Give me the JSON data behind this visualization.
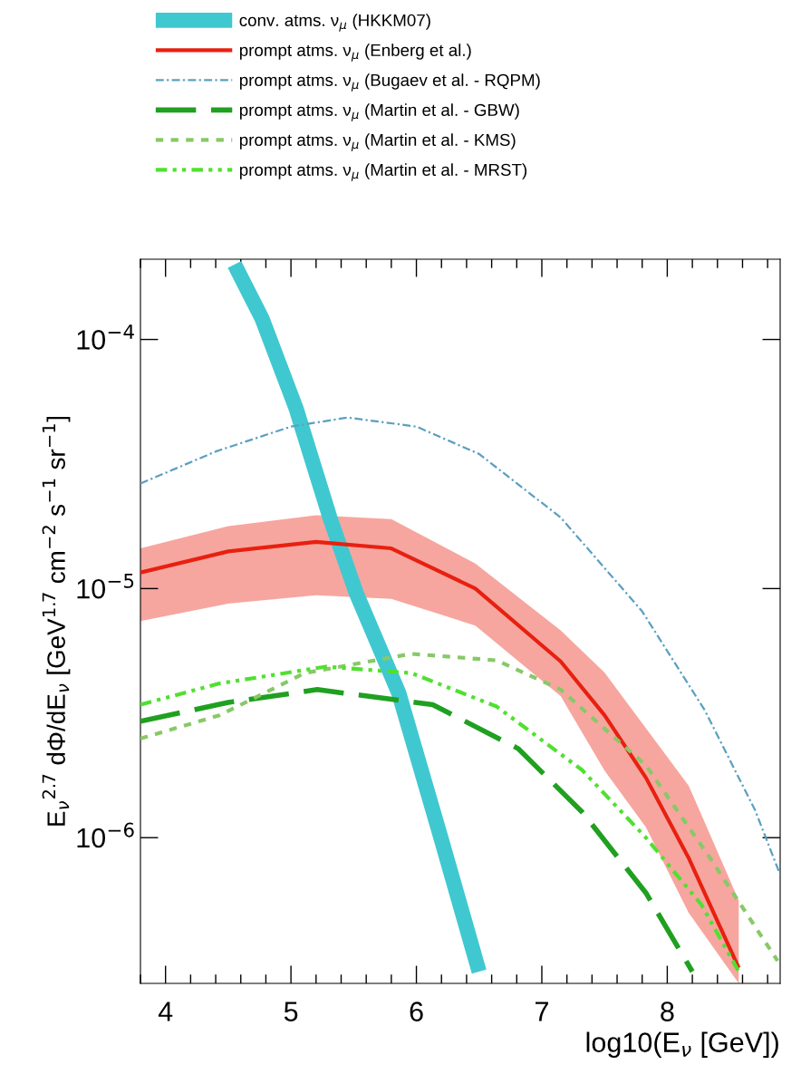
{
  "chart_data": {
    "type": "line",
    "xlabel": "log10(E$_{ν}$ [GeV])",
    "ylabel": "E$_{ν}$$^{2.7}$ dΦ/dE$_{ν}$ [GeV$^{1.7}$ cm$^{−2}$ s$^{−1}$ sr$^{−1}$]",
    "log": "y",
    "grid": false,
    "legend": "top",
    "xlim": [
      3.8,
      8.9
    ],
    "xticks": [
      {
        "value": 3.8,
        "label": null
      },
      4,
      {
        "value": 4.2,
        "label": null
      },
      {
        "value": 4.4,
        "label": null
      },
      {
        "value": 4.6,
        "label": null
      },
      {
        "value": 4.8,
        "label": null
      },
      5,
      {
        "value": 5.2,
        "label": null
      },
      {
        "value": 5.4,
        "label": null
      },
      {
        "value": 5.6,
        "label": null
      },
      {
        "value": 5.8,
        "label": null
      },
      6,
      {
        "value": 6.2,
        "label": null
      },
      {
        "value": 6.4,
        "label": null
      },
      {
        "value": 6.6,
        "label": null
      },
      {
        "value": 6.8,
        "label": null
      },
      7,
      {
        "value": 7.2,
        "label": null
      },
      {
        "value": 7.4,
        "label": null
      },
      {
        "value": 7.6,
        "label": null
      },
      {
        "value": 7.8,
        "label": null
      },
      8,
      {
        "value": 8.2,
        "label": null
      },
      {
        "value": 8.4,
        "label": null
      },
      {
        "value": 8.6,
        "label": null
      },
      {
        "value": 8.8,
        "label": null
      }
    ],
    "ylim": [
      2.6e-07,
      0.00021
    ],
    "yticks": [
      {
        "value": 1e-06,
        "label": "10$^{−6}$"
      },
      {
        "value": 1e-05,
        "label": "10$^{−5}$"
      },
      {
        "value": 0.0001,
        "label": "10$^{−4}$"
      }
    ],
    "series": [
      {
        "name": "conv. atms. ν$_{μ}$ (HKKM07)",
        "color": "#40c8d0",
        "line_style": "solid",
        "x": [
          4.55,
          4.77,
          5.04,
          5.31,
          5.52,
          5.86,
          6.2,
          6.5
        ],
        "values": [
          0.0002,
          0.000121,
          5.3e-05,
          1.93e-05,
          9.6e-06,
          3.8e-06,
          9.8e-07,
          2.9e-07
        ]
      },
      {
        "name": "prompt atms. ν$_{μ}$ (Enberg et al.)",
        "color": "#e82010",
        "line_style": "solid",
        "x": [
          3.8,
          4.5,
          5.2,
          5.8,
          6.47,
          7.15,
          7.5,
          7.83,
          8.17,
          8.57
        ],
        "values": [
          1.16e-05,
          1.41e-05,
          1.54e-05,
          1.45e-05,
          1e-05,
          5.1e-06,
          3.1e-06,
          1.74e-06,
          8.3e-07,
          3e-07
        ],
        "upper": [
          1.45e-05,
          1.78e-05,
          1.97e-05,
          1.9e-05,
          1.26e-05,
          6.8e-06,
          4.6e-06,
          2.75e-06,
          1.62e-06,
          5.6e-07
        ],
        "lower": [
          7.4e-06,
          8.7e-06,
          9.4e-06,
          9.1e-06,
          7.1e-06,
          3.7e-06,
          1.86e-06,
          1.1e-06,
          5e-07,
          2.6e-07
        ]
      },
      {
        "name": "prompt atms. ν$_{μ}$ (Bugaev et al. - RQPM)",
        "color": "#5aa0c0",
        "line_style": "dashdot",
        "x": [
          3.8,
          4.4,
          5.0,
          5.45,
          6.0,
          6.5,
          7.15,
          7.8,
          8.3,
          8.7,
          8.9
        ],
        "values": [
          2.64e-05,
          3.55e-05,
          4.47e-05,
          4.86e-05,
          4.47e-05,
          3.47e-05,
          1.93e-05,
          8.1e-06,
          3.24e-06,
          1.29e-06,
          7.1e-07
        ]
      },
      {
        "name": "prompt atms. ν$_{μ}$ (Martin et al. - GBW)",
        "color": "#20a020",
        "line_style": "dashed",
        "x": [
          3.8,
          4.5,
          5.21,
          6.13,
          6.81,
          7.32,
          7.83,
          8.2
        ],
        "values": [
          2.93e-06,
          3.49e-06,
          3.93e-06,
          3.42e-06,
          2.28e-06,
          1.27e-06,
          6e-07,
          2.9e-07
        ]
      },
      {
        "name": "prompt atms. ν$_{μ}$ (Martin et al. - KMS)",
        "color": "#88c868",
        "line_style": "dotted",
        "x": [
          3.8,
          4.43,
          5.11,
          5.96,
          6.64,
          7.15,
          7.83,
          8.34,
          8.88
        ],
        "values": [
          2.5e-06,
          3.1e-06,
          4.58e-06,
          5.47e-06,
          5.15e-06,
          3.93e-06,
          1.95e-06,
          8.3e-07,
          3.2e-07
        ]
      },
      {
        "name": "prompt atms. ν$_{μ}$ (Martin et al. - MRST)",
        "color": "#50e030",
        "line_style": "dashdotdot",
        "x": [
          3.8,
          4.43,
          5.28,
          5.96,
          6.64,
          7.32,
          7.83,
          8.27,
          8.57
        ],
        "values": [
          3.42e-06,
          4.16e-06,
          4.86e-06,
          4.58e-06,
          3.36e-06,
          1.87e-06,
          1e-06,
          5.4e-07,
          2.9e-07
        ]
      }
    ]
  }
}
